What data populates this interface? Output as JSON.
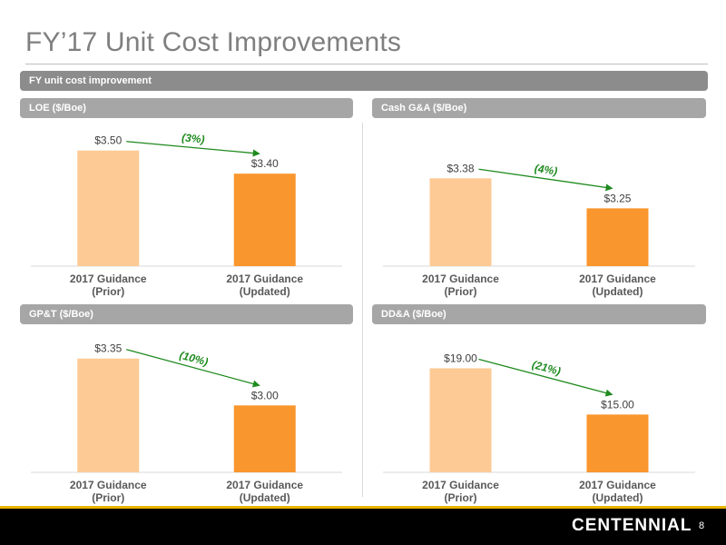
{
  "page": {
    "title": "FY’17 Unit Cost Improvements",
    "section_label": "FY unit cost improvement",
    "logo_text": "CENTENNIAL",
    "page_number": "8"
  },
  "colors": {
    "prior_bar": "#fdca96",
    "updated_bar": "#f9962d",
    "arrow": "#1e8a1e"
  },
  "chart_data": [
    {
      "type": "bar",
      "title": "LOE ($/Boe)",
      "categories": [
        "2017 Guidance\n(Prior)",
        "2017 Guidance\n(Updated)"
      ],
      "values": [
        3.5,
        3.4
      ],
      "value_labels": [
        "$3.50",
        "$3.40"
      ],
      "change_label": "(3%)",
      "ylim": [
        3.0,
        3.55
      ]
    },
    {
      "type": "bar",
      "title": "Cash G&A ($/Boe)",
      "categories": [
        "2017 Guidance\n(Prior)",
        "2017 Guidance\n(Updated)"
      ],
      "values": [
        3.38,
        3.25
      ],
      "value_labels": [
        "$3.38",
        "$3.25"
      ],
      "change_label": "(4%)",
      "ylim": [
        3.0,
        3.55
      ]
    },
    {
      "type": "bar",
      "title": "GP&T ($/Boe)",
      "categories": [
        "2017 Guidance\n(Prior)",
        "2017 Guidance\n(Updated)"
      ],
      "values": [
        3.35,
        3.0
      ],
      "value_labels": [
        "$3.35",
        "$3.00"
      ],
      "change_label": "(10%)",
      "ylim": [
        2.5,
        3.45
      ]
    },
    {
      "type": "bar",
      "title": "DD&A ($/Boe)",
      "categories": [
        "2017 Guidance\n(Prior)",
        "2017 Guidance\n(Updated)"
      ],
      "values": [
        19.0,
        15.0
      ],
      "value_labels": [
        "$19.00",
        "$15.00"
      ],
      "change_label": "(21%)",
      "ylim": [
        10.0,
        21.0
      ]
    }
  ]
}
